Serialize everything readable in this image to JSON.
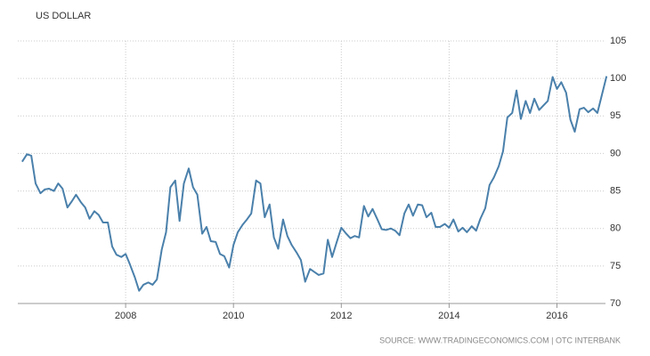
{
  "chart_data": {
    "type": "line",
    "title": "US DOLLAR",
    "source": "SOURCE: WWW.TRADINGECONOMICS.COM | OTC INTERBANK",
    "x": [
      2006.08,
      2006.17,
      2006.25,
      2006.33,
      2006.42,
      2006.5,
      2006.58,
      2006.67,
      2006.75,
      2006.83,
      2006.92,
      2007.0,
      2007.08,
      2007.17,
      2007.25,
      2007.33,
      2007.42,
      2007.5,
      2007.58,
      2007.67,
      2007.75,
      2007.83,
      2007.92,
      2008.0,
      2008.08,
      2008.17,
      2008.25,
      2008.33,
      2008.42,
      2008.5,
      2008.58,
      2008.67,
      2008.75,
      2008.83,
      2008.92,
      2009.0,
      2009.08,
      2009.17,
      2009.25,
      2009.33,
      2009.42,
      2009.5,
      2009.58,
      2009.67,
      2009.75,
      2009.83,
      2009.92,
      2010.0,
      2010.08,
      2010.17,
      2010.25,
      2010.33,
      2010.42,
      2010.5,
      2010.58,
      2010.67,
      2010.75,
      2010.83,
      2010.92,
      2011.0,
      2011.08,
      2011.17,
      2011.25,
      2011.33,
      2011.42,
      2011.5,
      2011.58,
      2011.67,
      2011.75,
      2011.83,
      2011.92,
      2012.0,
      2012.08,
      2012.17,
      2012.25,
      2012.33,
      2012.42,
      2012.5,
      2012.58,
      2012.67,
      2012.75,
      2012.83,
      2012.92,
      2013.0,
      2013.08,
      2013.17,
      2013.25,
      2013.33,
      2013.42,
      2013.5,
      2013.58,
      2013.67,
      2013.75,
      2013.83,
      2013.92,
      2014.0,
      2014.08,
      2014.17,
      2014.25,
      2014.33,
      2014.42,
      2014.5,
      2014.58,
      2014.67,
      2014.75,
      2014.83,
      2014.92,
      2015.0,
      2015.08,
      2015.17,
      2015.25,
      2015.33,
      2015.42,
      2015.5,
      2015.58,
      2015.67,
      2015.75,
      2015.83,
      2015.92,
      2016.0,
      2016.08,
      2016.17,
      2016.25,
      2016.33,
      2016.42,
      2016.5,
      2016.58,
      2016.67,
      2016.75,
      2016.83,
      2016.92
    ],
    "series": [
      {
        "name": "US DOLLAR",
        "color": "#4a80ab",
        "values": [
          88.9,
          89.9,
          89.7,
          86,
          84.7,
          85.2,
          85.3,
          85.0,
          86,
          85.3,
          82.8,
          83.6,
          84.5,
          83.5,
          82.8,
          81.3,
          82.3,
          81.8,
          80.8,
          80.8,
          77.6,
          76.5,
          76.2,
          76.6,
          75.2,
          73.5,
          71.7,
          72.5,
          72.8,
          72.5,
          73.2,
          77.2,
          79.5,
          85.5,
          86.4,
          81.0,
          86,
          88,
          85.5,
          84.5,
          79.3,
          80.2,
          78.3,
          78.2,
          76.6,
          76.3,
          74.8,
          77.8,
          79.5,
          80.5,
          81.2,
          82,
          86.4,
          86,
          81.5,
          83.2,
          78.8,
          77.3,
          81.2,
          79,
          77.8,
          76.8,
          75.8,
          72.9,
          74.6,
          74.2,
          73.8,
          74,
          78.5,
          76.2,
          78.3,
          80.1,
          79.4,
          78.7,
          79,
          78.8,
          83,
          81.6,
          82.6,
          81.2,
          79.9,
          79.8,
          80,
          79.7,
          79.1,
          82,
          83.2,
          81.7,
          83.2,
          83.1,
          81.5,
          82.1,
          80.2,
          80.2,
          80.6,
          80.1,
          81.2,
          79.6,
          80.1,
          79.5,
          80.3,
          79.7,
          81.3,
          82.7,
          85.8,
          86.8,
          88.3,
          90.3,
          94.8,
          95.4,
          98.4,
          94.6,
          97,
          95.4,
          97.3,
          95.8,
          96.4,
          97,
          100.2,
          98.6,
          99.5,
          98.1,
          94.5,
          92.9,
          95.9,
          96.1,
          95.5,
          96,
          95.4,
          97.7,
          100.3
        ]
      }
    ],
    "xlim": [
      2006.0,
      2016.9
    ],
    "xticks": [
      2008,
      2010,
      2012,
      2014,
      2016
    ],
    "ylim": [
      70,
      105
    ],
    "yticks": [
      70,
      75,
      80,
      85,
      90,
      95,
      100,
      105
    ],
    "grid": true
  }
}
